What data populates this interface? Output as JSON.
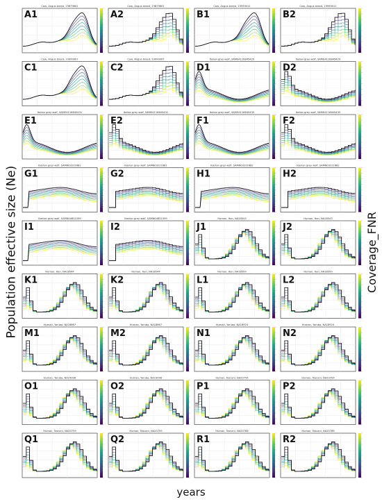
{
  "figure": {
    "ylabel": "Population effective size (Ne)",
    "xlabel": "years",
    "colorbar_label": "Coverage_FNR"
  },
  "colors": {
    "viridis": [
      "#440154",
      "#46327e",
      "#365c8d",
      "#277f8e",
      "#1fa187",
      "#4ac16d",
      "#a0da39",
      "#fde725"
    ],
    "reference": "#111111"
  },
  "chart_data": [
    {
      "id": "A1",
      "label": "A1",
      "title": "Cow, Angus breed, 19879801",
      "type": "line",
      "shape": "cow"
    },
    {
      "id": "A2",
      "label": "A2",
      "title": "Cow, Angus breed, 19879801",
      "type": "line",
      "shape": "cow"
    },
    {
      "id": "B1",
      "label": "B1",
      "title": "Cow, Angus breed, 19999011",
      "type": "line",
      "shape": "cow"
    },
    {
      "id": "B2",
      "label": "B2",
      "title": "Cow, Angus breed, 19999011",
      "type": "line",
      "shape": "cow"
    },
    {
      "id": "C1",
      "label": "C1",
      "title": "Cow, Angus breed, 19999007",
      "type": "line",
      "shape": "cow"
    },
    {
      "id": "C2",
      "label": "C2",
      "title": "Cow, Angus breed, 19999007",
      "type": "line",
      "shape": "cow"
    },
    {
      "id": "D1",
      "label": "D1",
      "title": "Italian grey wolf, SAMEA116845429",
      "type": "line",
      "shape": "wolf"
    },
    {
      "id": "D2",
      "label": "D2",
      "title": "Italian grey wolf, SAMEA116845429",
      "type": "line",
      "shape": "wolf"
    },
    {
      "id": "E1",
      "label": "E1",
      "title": "Italian grey wolf, SAMEA116845431",
      "type": "line",
      "shape": "wolf"
    },
    {
      "id": "E2",
      "label": "E2",
      "title": "Italian grey wolf, SAMEA116845431",
      "type": "line",
      "shape": "wolf"
    },
    {
      "id": "F1",
      "label": "F1",
      "title": "Italian grey wolf, SAMEA116845435",
      "type": "line",
      "shape": "wolf"
    },
    {
      "id": "F2",
      "label": "F2",
      "title": "Italian grey wolf, SAMEA116845435",
      "type": "line",
      "shape": "wolf"
    },
    {
      "id": "G1",
      "label": "G1",
      "title": "Iberian grey wolf, SAMN03221681",
      "type": "line",
      "shape": "iberian"
    },
    {
      "id": "G2",
      "label": "G2",
      "title": "Iberian grey wolf, SAMN03221681",
      "type": "line",
      "shape": "iberian"
    },
    {
      "id": "H1",
      "label": "H1",
      "title": "Iberian grey wolf, SAMN03221682",
      "type": "line",
      "shape": "iberian"
    },
    {
      "id": "H2",
      "label": "H2",
      "title": "Iberian grey wolf, SAMN03221682",
      "type": "line",
      "shape": "iberian"
    },
    {
      "id": "I1",
      "label": "I1",
      "title": "Iberian grey wolf, SAMN04851099",
      "type": "line",
      "shape": "iberian"
    },
    {
      "id": "I2",
      "label": "I2",
      "title": "Iberian grey wolf, SAMN04851099",
      "type": "line",
      "shape": "iberian"
    },
    {
      "id": "J1",
      "label": "J1",
      "title": "Human, Han, NA18543",
      "type": "line",
      "shape": "human"
    },
    {
      "id": "J2",
      "label": "J2",
      "title": "Human, Han, NA18543",
      "type": "line",
      "shape": "human"
    },
    {
      "id": "K1",
      "label": "K1",
      "title": "Human, Han, NA18544",
      "type": "line",
      "shape": "human"
    },
    {
      "id": "K2",
      "label": "K2",
      "title": "Human, Han, NA18544",
      "type": "line",
      "shape": "human"
    },
    {
      "id": "L1",
      "label": "L1",
      "title": "Human, Han, NA18559",
      "type": "line",
      "shape": "human"
    },
    {
      "id": "L2",
      "label": "L2",
      "title": "Human, Han, NA18559",
      "type": "line",
      "shape": "human"
    },
    {
      "id": "M1",
      "label": "M1",
      "title": "Human, Yoruba, NA18867",
      "type": "line",
      "shape": "human"
    },
    {
      "id": "M2",
      "label": "M2",
      "title": "Human, Yoruba, NA18867",
      "type": "line",
      "shape": "human"
    },
    {
      "id": "N1",
      "label": "N1",
      "title": "Human, Yoruba, NA18924",
      "type": "line",
      "shape": "human"
    },
    {
      "id": "N2",
      "label": "N2",
      "title": "Human, Yoruba, NA18924",
      "type": "line",
      "shape": "human"
    },
    {
      "id": "O1",
      "label": "O1",
      "title": "Human, Yoruba, NA19096",
      "type": "line",
      "shape": "human"
    },
    {
      "id": "O2",
      "label": "O2",
      "title": "Human, Yoruba, NA19096",
      "type": "line",
      "shape": "human"
    },
    {
      "id": "P1",
      "label": "P1",
      "title": "Human, Toscani, NA20754",
      "type": "line",
      "shape": "human"
    },
    {
      "id": "P2",
      "label": "P2",
      "title": "Human, Toscani, NA20754",
      "type": "line",
      "shape": "human"
    },
    {
      "id": "Q1",
      "label": "Q1",
      "title": "Human, Toscani, NA20759",
      "type": "line",
      "shape": "human"
    },
    {
      "id": "Q2",
      "label": "Q2",
      "title": "Human, Toscani, NA20759",
      "type": "line",
      "shape": "human"
    },
    {
      "id": "R1",
      "label": "R1",
      "title": "Human, Toscani, NA20786",
      "type": "line",
      "shape": "human"
    },
    {
      "id": "R2",
      "label": "R2",
      "title": "Human, Toscani, NA20786",
      "type": "line",
      "shape": "human"
    }
  ]
}
